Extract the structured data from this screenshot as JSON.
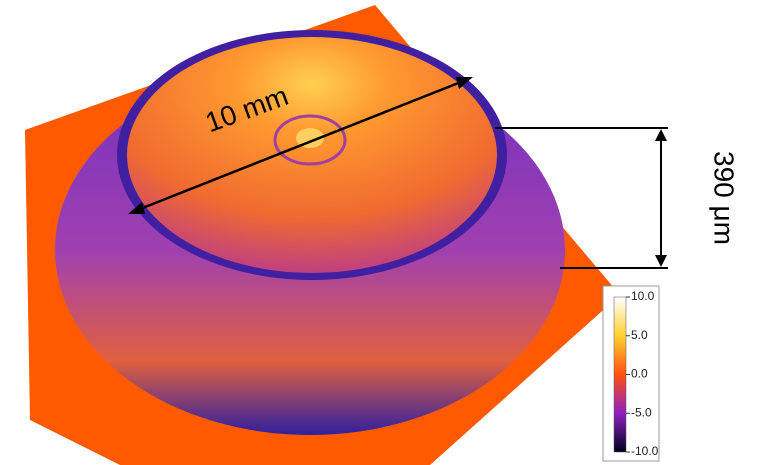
{
  "annotations": {
    "diameter": "10 mm",
    "height": "390 μm"
  },
  "colorbar": {
    "ticks": [
      {
        "value": 10,
        "label": "10.0"
      },
      {
        "value": 5,
        "label": "5.0"
      },
      {
        "value": 0,
        "label": "0.0"
      },
      {
        "value": -5,
        "label": "-5.0"
      },
      {
        "value": -10,
        "label": "-10.0"
      }
    ]
  }
}
